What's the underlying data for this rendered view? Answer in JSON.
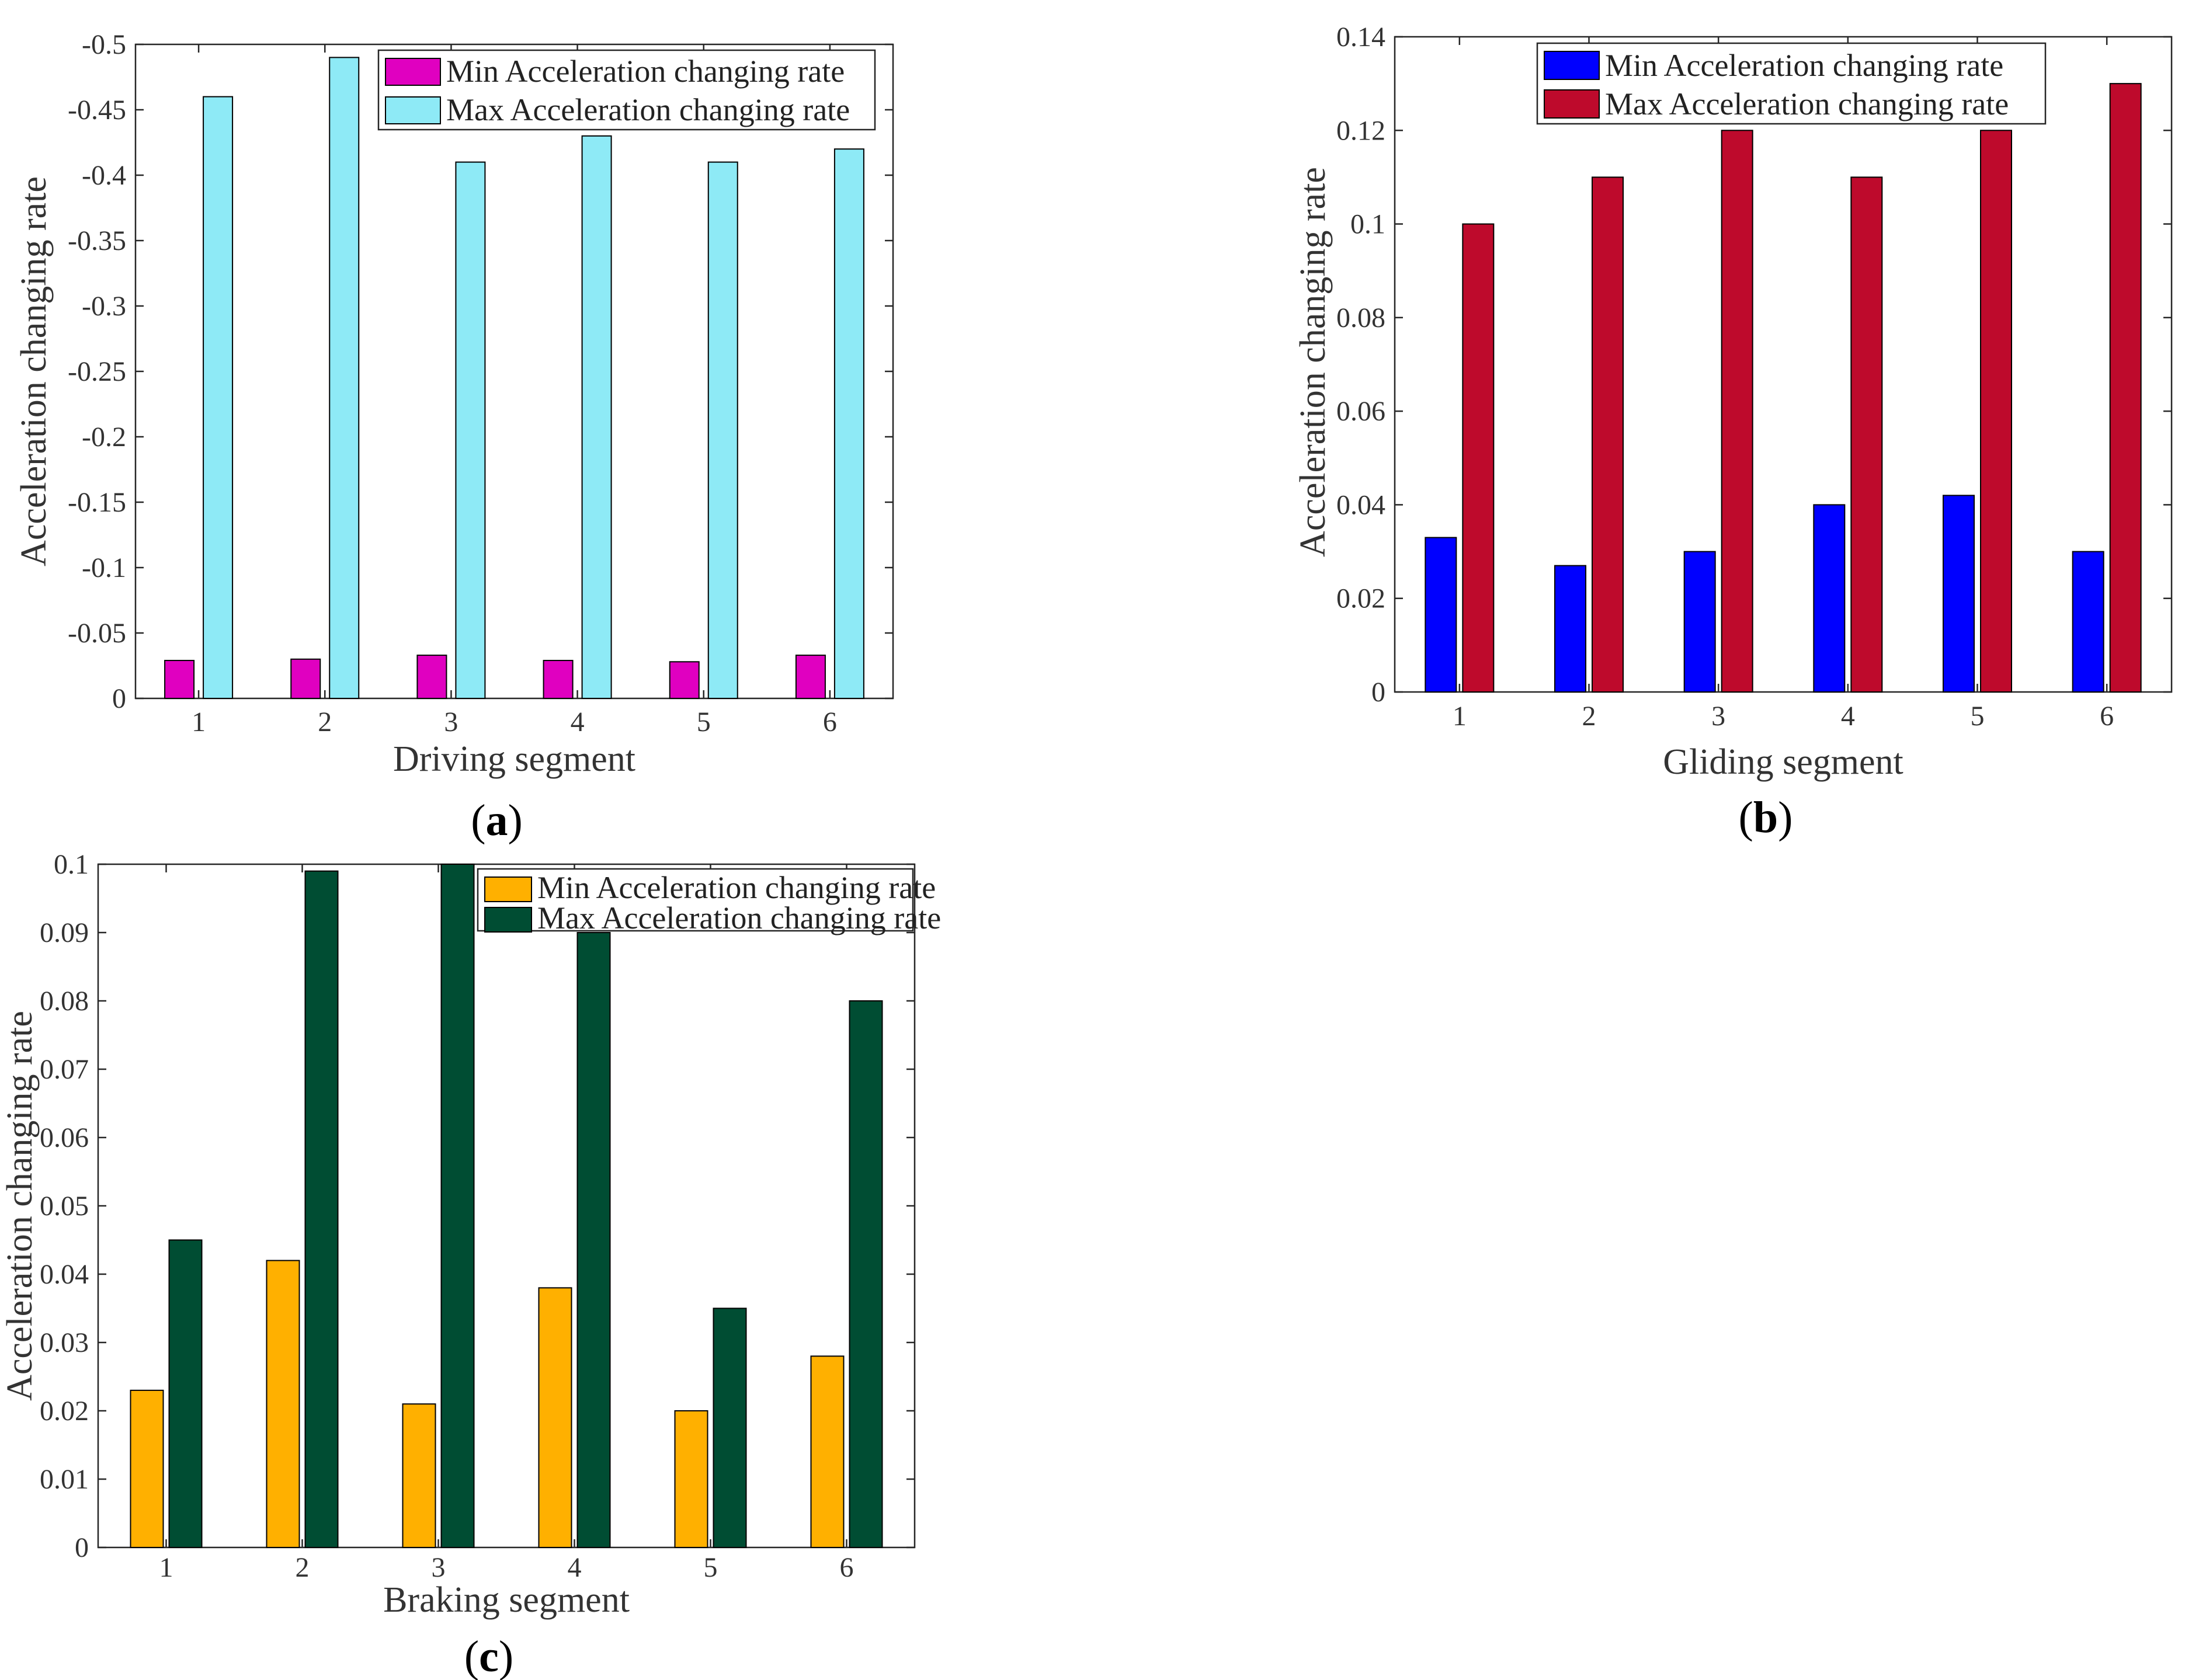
{
  "chart_data": [
    {
      "type": "bar",
      "panel_label": "a",
      "categories": [
        "1",
        "2",
        "3",
        "4",
        "5",
        "6"
      ],
      "series": [
        {
          "name": "Min Acceleration changing rate",
          "color": "#E000C0",
          "values": [
            -0.029,
            -0.03,
            -0.033,
            -0.029,
            -0.028,
            -0.033
          ]
        },
        {
          "name": "Max Acceleration changing rate",
          "color": "#8EEAF6",
          "values": [
            -0.46,
            -0.49,
            -0.41,
            -0.43,
            -0.41,
            -0.42
          ]
        }
      ],
      "xlabel": "Driving segment",
      "ylabel": "Acceleration changing rate",
      "ylim": [
        0,
        -0.5
      ],
      "yticks": [
        0,
        -0.05,
        -0.1,
        -0.15,
        -0.2,
        -0.25,
        -0.3,
        -0.35,
        -0.4,
        -0.45,
        -0.5
      ],
      "ytick_labels": [
        "0",
        "-0.05",
        "-0.1",
        "-0.15",
        "-0.2",
        "-0.25",
        "-0.3",
        "-0.35",
        "-0.4",
        "-0.45",
        "-0.5"
      ],
      "legend_location": "top-right"
    },
    {
      "type": "bar",
      "panel_label": "b",
      "categories": [
        "1",
        "2",
        "3",
        "4",
        "5",
        "6"
      ],
      "series": [
        {
          "name": "Min Acceleration changing rate",
          "color": "#0000FF",
          "values": [
            0.033,
            0.027,
            0.03,
            0.04,
            0.042,
            0.03
          ]
        },
        {
          "name": "Max Acceleration changing rate",
          "color": "#BE0A2C",
          "values": [
            0.1,
            0.11,
            0.12,
            0.11,
            0.12,
            0.13
          ]
        }
      ],
      "xlabel": "Gliding segment",
      "ylabel": "Acceleration changing rate",
      "ylim": [
        0,
        0.14
      ],
      "yticks": [
        0,
        0.02,
        0.04,
        0.06,
        0.08,
        0.1,
        0.12,
        0.14
      ],
      "ytick_labels": [
        "0",
        "0.02",
        "0.04",
        "0.06",
        "0.08",
        "0.1",
        "0.12",
        "0.14"
      ],
      "legend_location": "top-right"
    },
    {
      "type": "bar",
      "panel_label": "c",
      "categories": [
        "1",
        "2",
        "3",
        "4",
        "5",
        "6"
      ],
      "series": [
        {
          "name": "Min Acceleration changing rate",
          "color": "#FFB000",
          "values": [
            0.023,
            0.042,
            0.021,
            0.038,
            0.02,
            0.028
          ]
        },
        {
          "name": "Max Acceleration changing rate",
          "color": "#004D33",
          "values": [
            0.045,
            0.099,
            0.1,
            0.09,
            0.035,
            0.08
          ]
        }
      ],
      "xlabel": "Braking segment",
      "ylabel": "Acceleration changing rate",
      "ylim": [
        0,
        0.1
      ],
      "yticks": [
        0,
        0.01,
        0.02,
        0.03,
        0.04,
        0.05,
        0.06,
        0.07,
        0.08,
        0.09,
        0.1
      ],
      "ytick_labels": [
        "0",
        "0.01",
        "0.02",
        "0.03",
        "0.04",
        "0.05",
        "0.06",
        "0.07",
        "0.08",
        "0.09",
        "0.1"
      ],
      "legend_location": "top-right"
    }
  ]
}
